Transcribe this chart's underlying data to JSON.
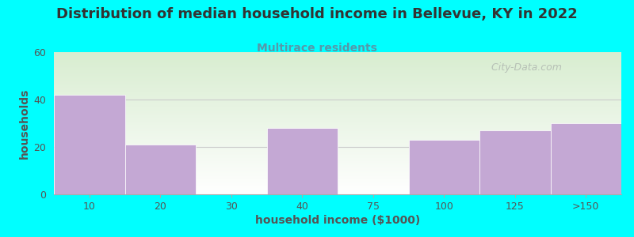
{
  "title": "Distribution of median household income in Bellevue, KY in 2022",
  "subtitle": "Multirace residents",
  "xlabel": "household income ($1000)",
  "ylabel": "households",
  "background_color": "#00FFFF",
  "bar_color": "#C4A8D4",
  "categories": [
    "10",
    "20",
    "30",
    "40",
    "75",
    "100",
    "125",
    ">150"
  ],
  "values": [
    42,
    21,
    0,
    28,
    0,
    23,
    27,
    30
  ],
  "ylim": [
    0,
    60
  ],
  "yticks": [
    0,
    20,
    40,
    60
  ],
  "watermark": "  City-Data.com",
  "plot_bg_top_left": "#D8EDD0",
  "plot_bg_top_right": "#E8F5E0",
  "plot_bg_bottom": "#FFFFFF",
  "title_color": "#333333",
  "subtitle_color": "#5599AA",
  "xlabel_color": "#555555",
  "ylabel_color": "#555555",
  "tick_color": "#555555",
  "title_fontsize": 13,
  "subtitle_fontsize": 10,
  "xlabel_fontsize": 10,
  "ylabel_fontsize": 10,
  "tick_fontsize": 9
}
